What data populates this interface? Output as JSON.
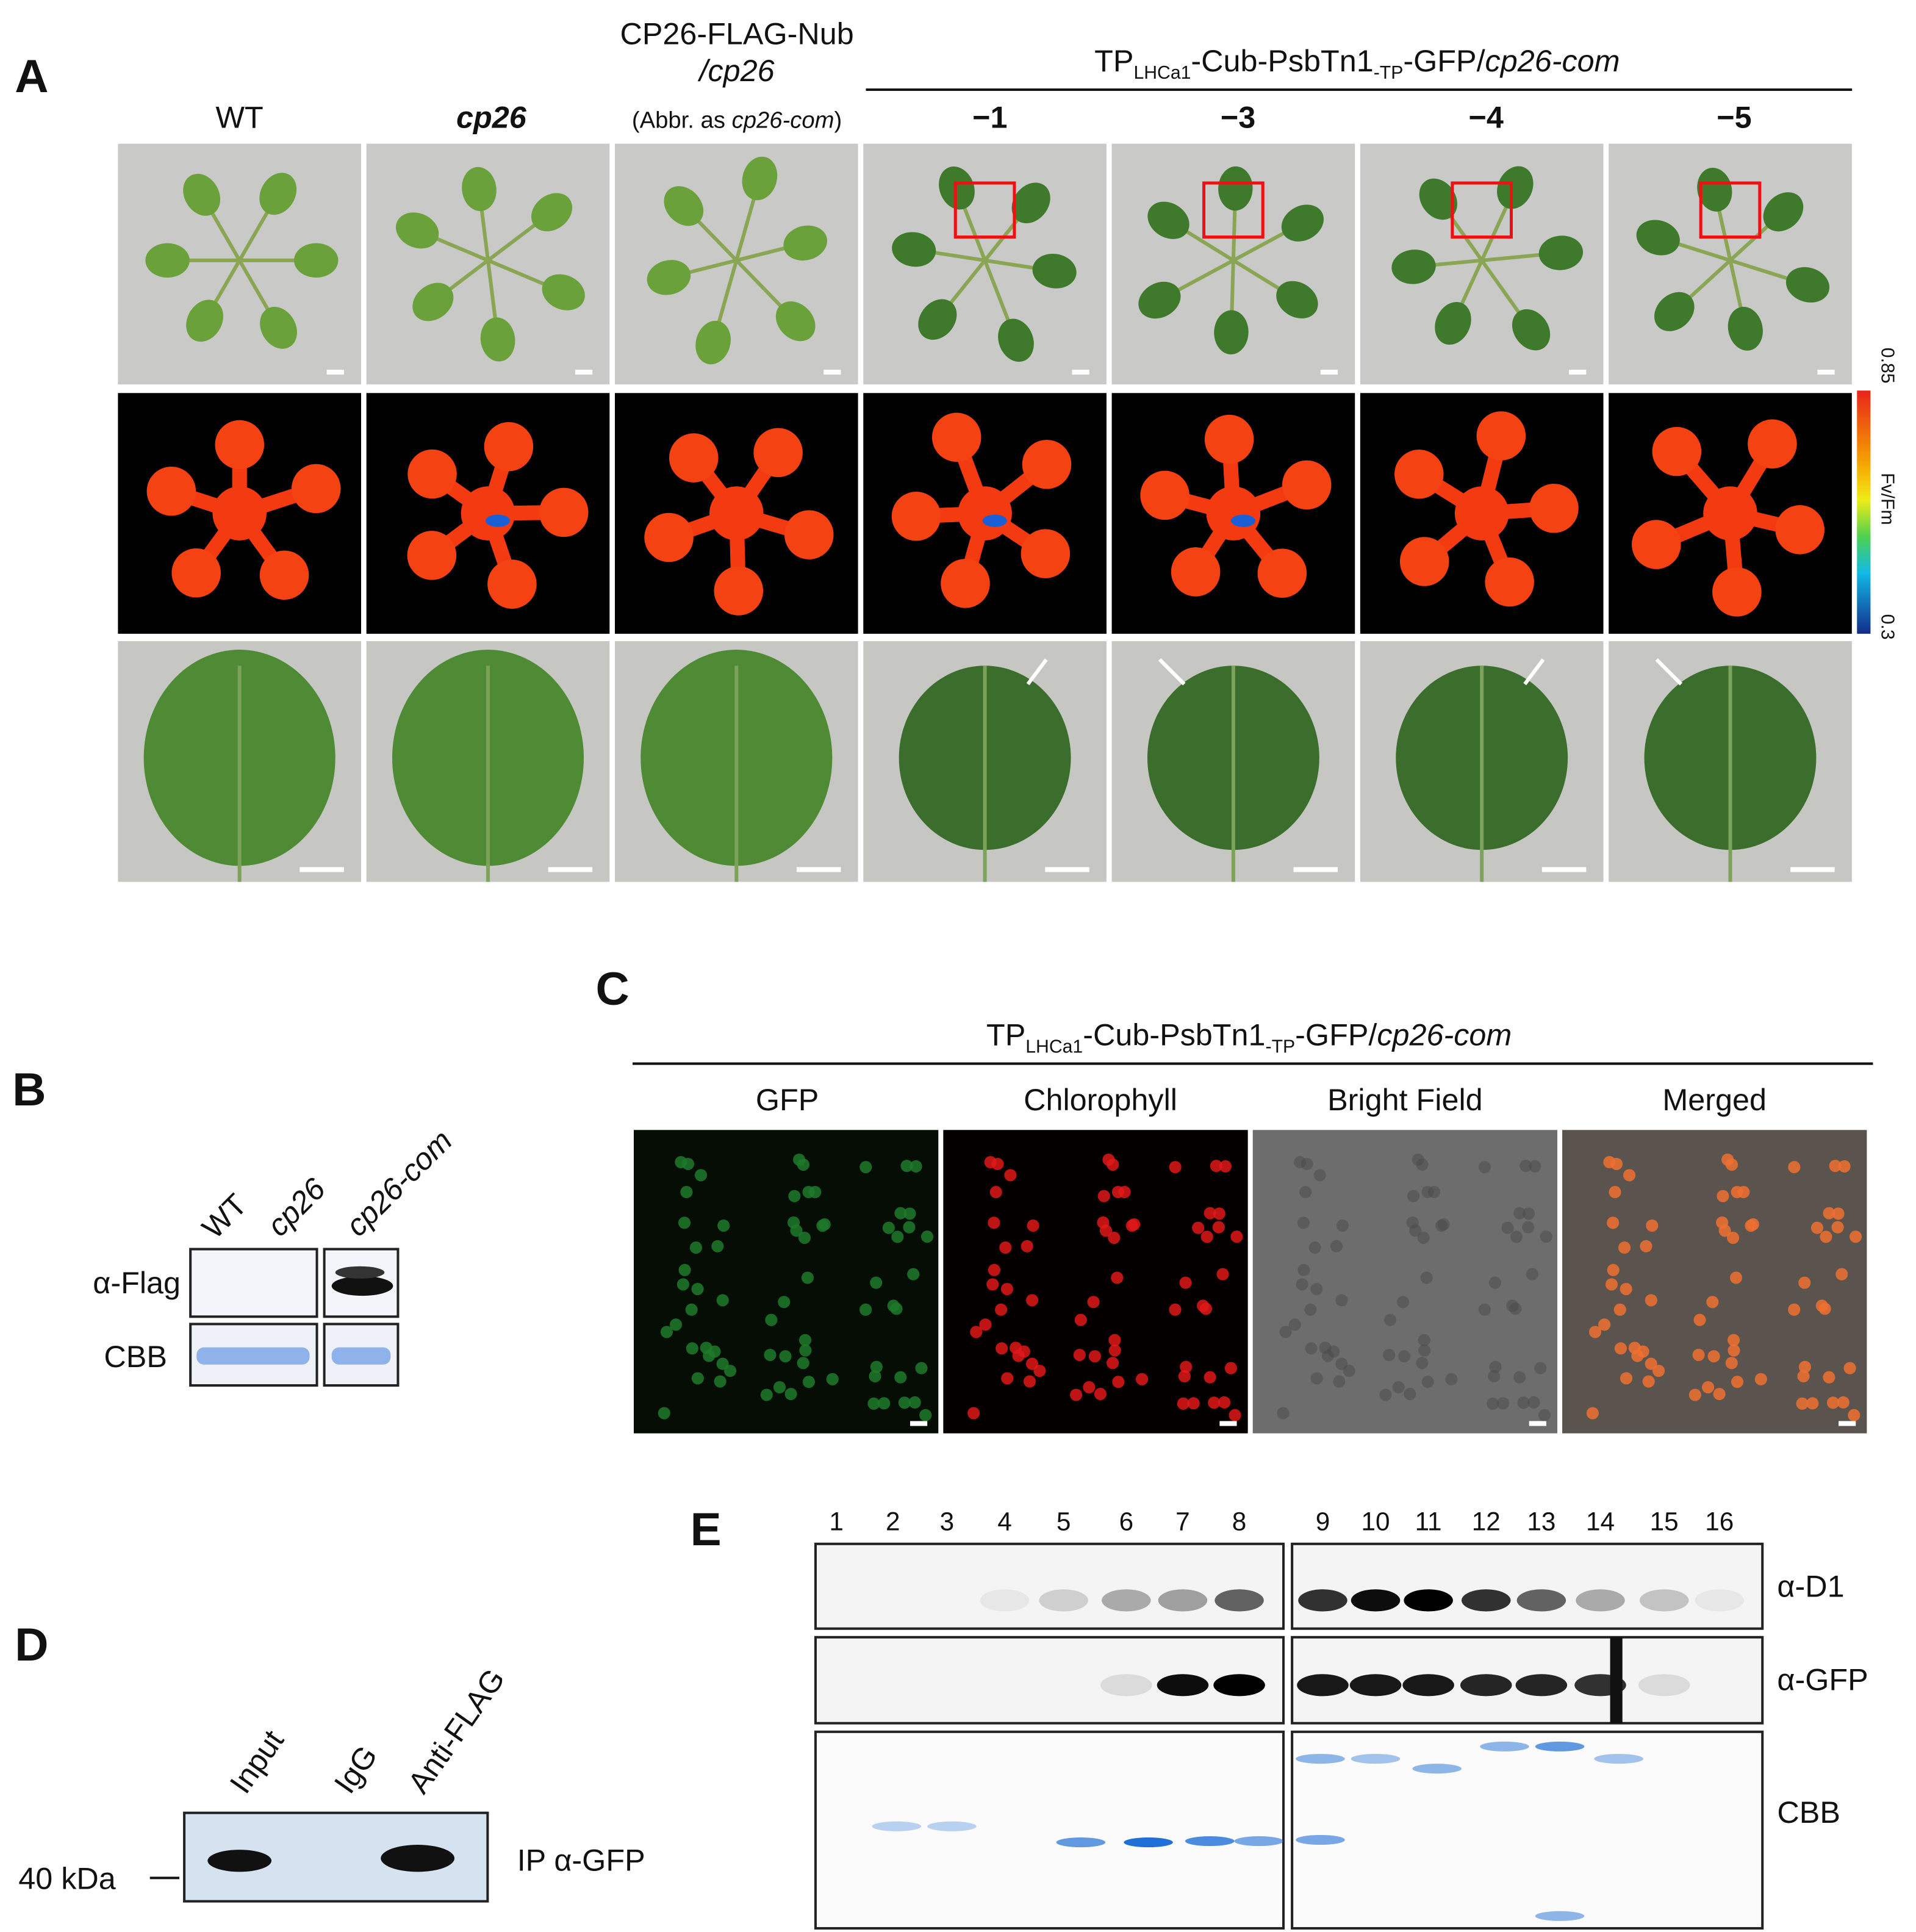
{
  "panels": {
    "a": {
      "label": "A",
      "wt": "WT",
      "cp26": "cp26",
      "com": {
        "line1": "CP26-FLAG-Nub",
        "line2": "/cp26",
        "note_start": "(Abbr. as ",
        "note_italic": "cp26-com",
        "note_end": ")"
      },
      "construct": [
        "TP",
        "LHCa1",
        "-Cub-PsbTn1",
        "-TP",
        "-GFP/",
        "cp26-com"
      ],
      "lines": [
        "−1",
        "−3",
        "−4",
        "−5"
      ],
      "colorbar": {
        "max": "0.85",
        "label": "Fv/Fm",
        "min": "0.3"
      }
    },
    "b": {
      "label": "B",
      "lanes": [
        "WT",
        "cp26",
        "cp26-com"
      ],
      "rows": [
        "α-Flag",
        "CBB"
      ]
    },
    "c": {
      "label": "C",
      "construct": [
        "TP",
        "LHCa1",
        "-Cub-PsbTn1",
        "-TP",
        "-GFP/",
        "cp26-com"
      ],
      "channels": [
        "GFP",
        "Chlorophyll",
        "Bright Field",
        "Merged"
      ]
    },
    "d": {
      "label": "D",
      "lanes": [
        "Input",
        "IgG",
        "Anti-FLAG"
      ],
      "marker": "40 kDa",
      "blot": "IP α-GFP"
    },
    "e": {
      "label": "E",
      "fractions": [
        "1",
        "2",
        "3",
        "4",
        "5",
        "6",
        "7",
        "8",
        "9",
        "10",
        "11",
        "12",
        "13",
        "14",
        "15",
        "16"
      ],
      "rows": [
        "α-D1",
        "α-GFP",
        "CBB"
      ]
    }
  }
}
